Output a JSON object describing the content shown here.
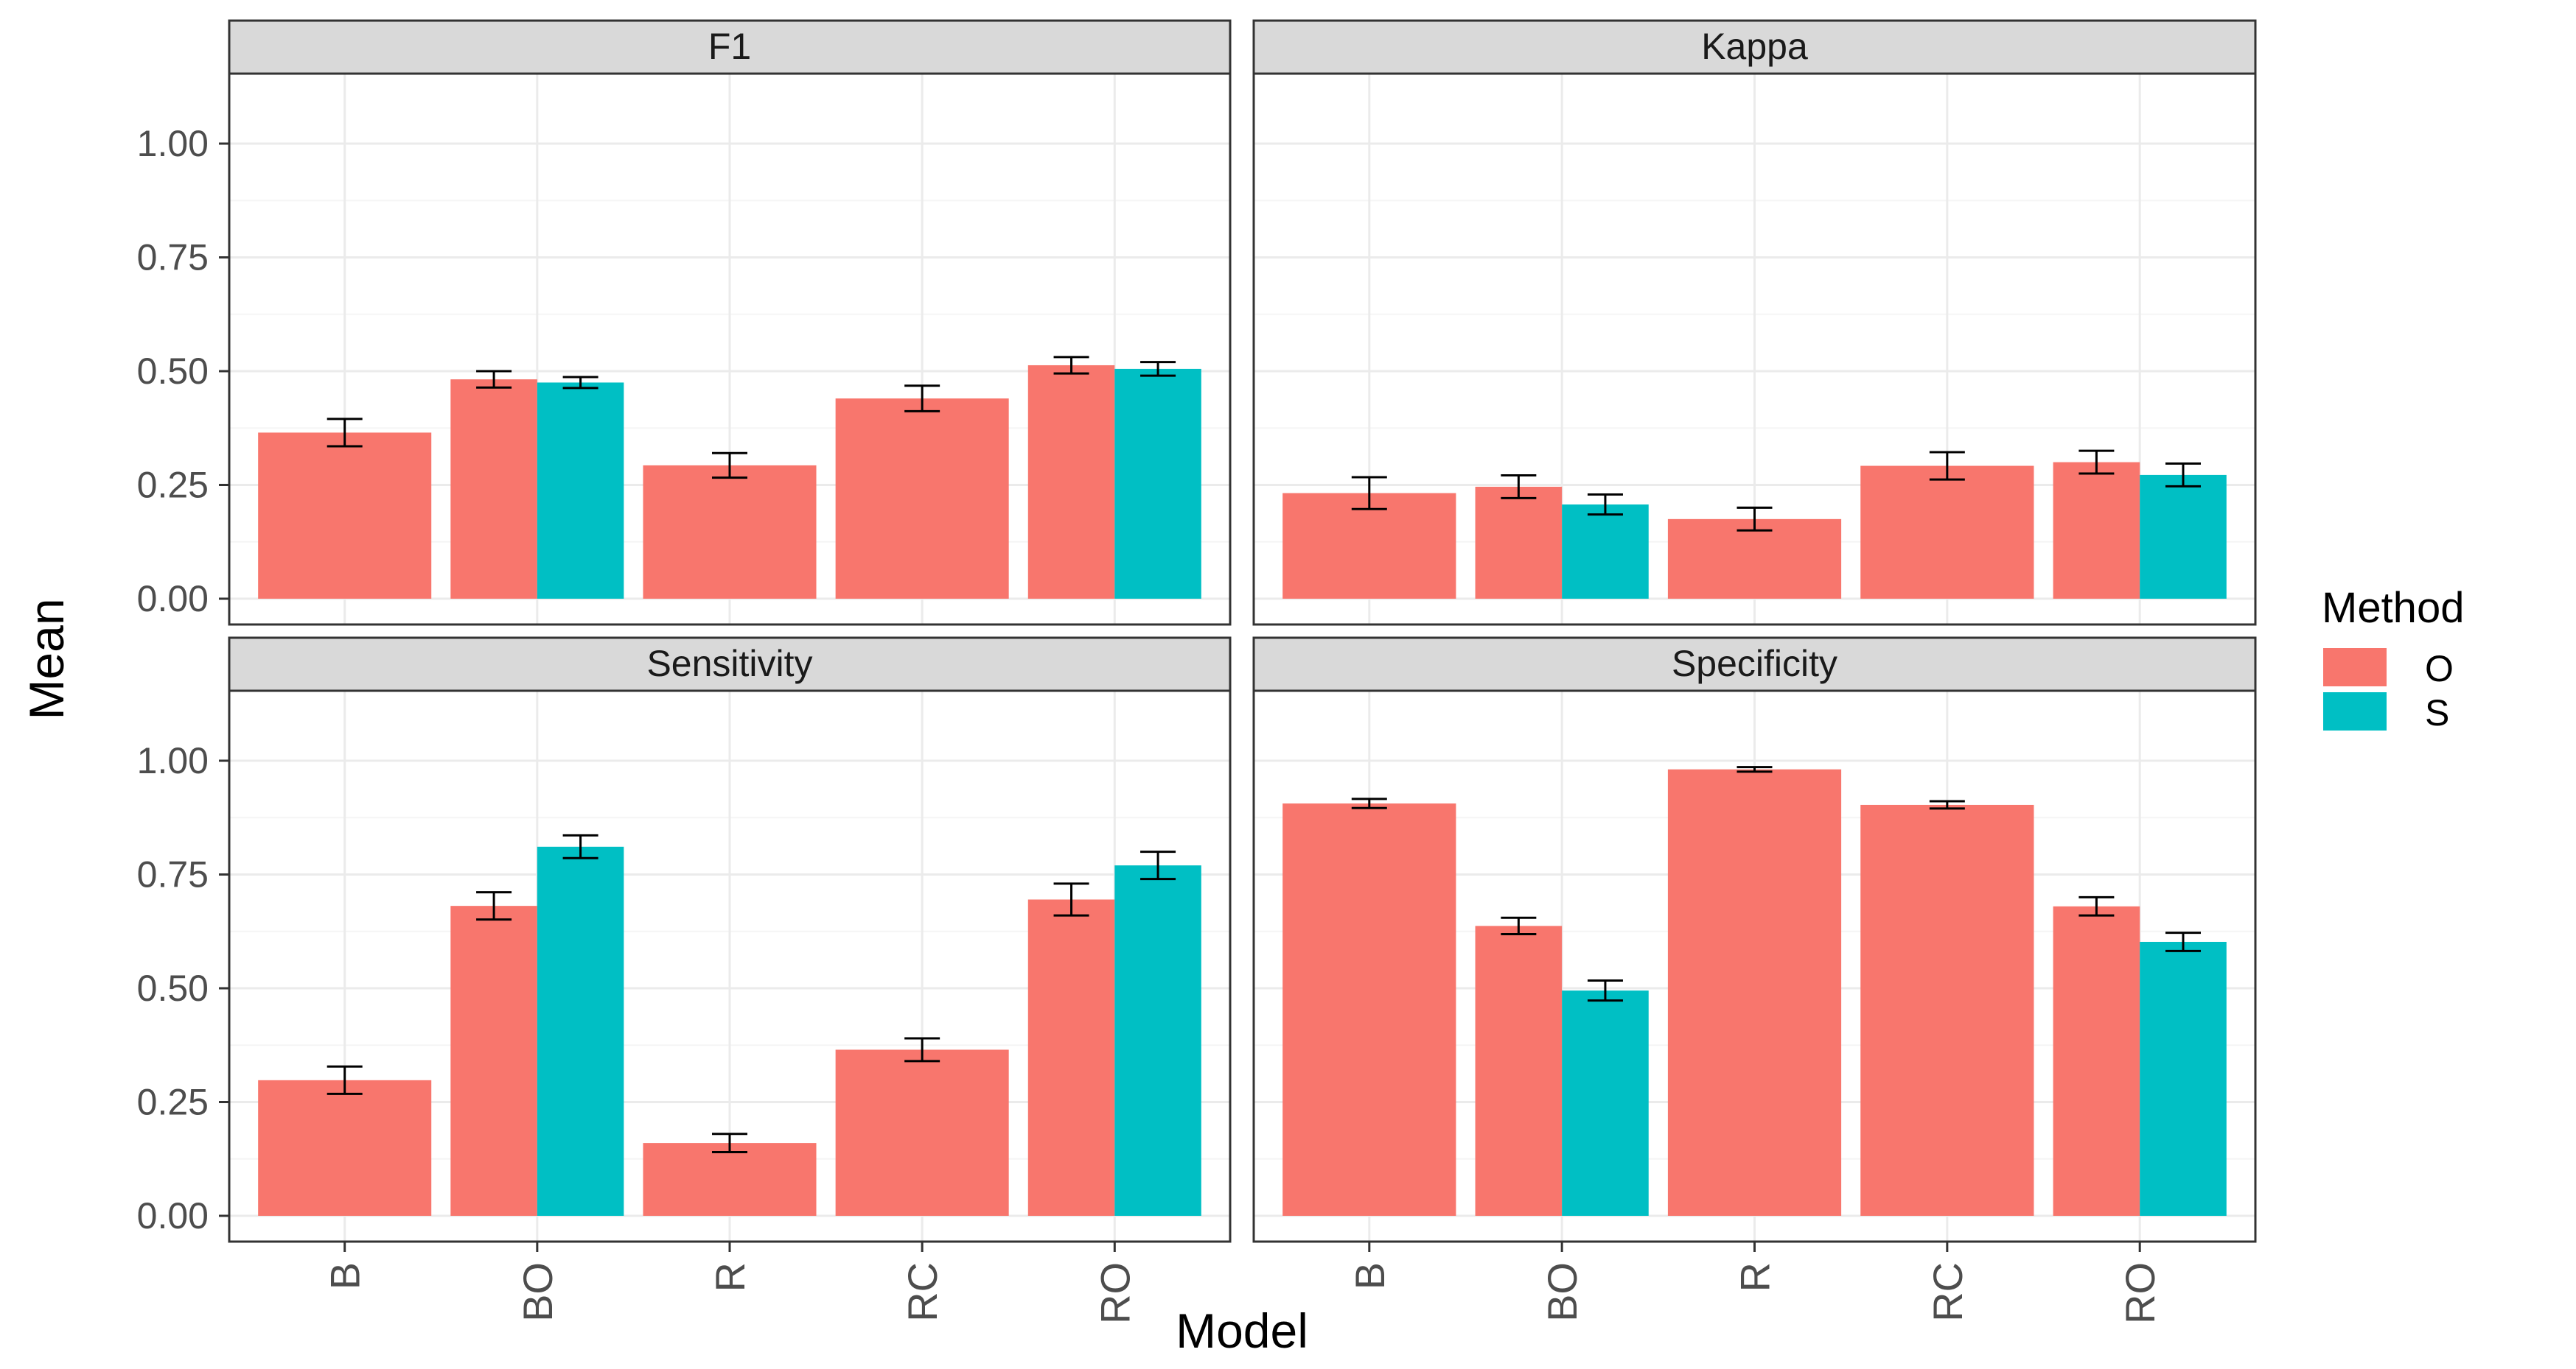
{
  "chart_data": {
    "type": "bar",
    "layout": "facet-grid-2x2",
    "xlabel": "Model",
    "ylabel": "Mean",
    "categories": [
      "B",
      "BO",
      "R",
      "RC",
      "RO"
    ],
    "ylim": [
      0,
      1
    ],
    "yticks": [
      "0.00",
      "0.25",
      "0.50",
      "0.75",
      "1.00"
    ],
    "grid": true,
    "error_bars": true,
    "legend": {
      "title": "Method",
      "position": "right",
      "entries": [
        {
          "label": "O",
          "color": "#F8766D"
        },
        {
          "label": "S",
          "color": "#00BFC4"
        }
      ]
    },
    "panels": [
      {
        "title": "F1",
        "series": [
          {
            "method": "O",
            "values": [
              0.365,
              0.482,
              0.293,
              0.44,
              0.513
            ],
            "errors": [
              0.03,
              0.018,
              0.027,
              0.028,
              0.018
            ]
          },
          {
            "method": "S",
            "values": [
              null,
              0.475,
              null,
              null,
              0.505
            ],
            "errors": [
              null,
              0.012,
              null,
              null,
              0.015
            ]
          }
        ]
      },
      {
        "title": "Kappa",
        "series": [
          {
            "method": "O",
            "values": [
              0.232,
              0.246,
              0.175,
              0.292,
              0.3
            ],
            "errors": [
              0.035,
              0.025,
              0.025,
              0.03,
              0.025
            ]
          },
          {
            "method": "S",
            "values": [
              null,
              0.207,
              null,
              null,
              0.272
            ],
            "errors": [
              null,
              0.022,
              null,
              null,
              0.025
            ]
          }
        ]
      },
      {
        "title": "Sensitivity",
        "series": [
          {
            "method": "O",
            "values": [
              0.298,
              0.681,
              0.16,
              0.365,
              0.695
            ],
            "errors": [
              0.03,
              0.03,
              0.02,
              0.025,
              0.035
            ]
          },
          {
            "method": "S",
            "values": [
              null,
              0.811,
              null,
              null,
              0.77
            ],
            "errors": [
              null,
              0.025,
              null,
              null,
              0.03
            ]
          }
        ]
      },
      {
        "title": "Specificity",
        "series": [
          {
            "method": "O",
            "values": [
              0.906,
              0.637,
              0.981,
              0.903,
              0.68
            ],
            "errors": [
              0.01,
              0.018,
              0.005,
              0.008,
              0.02
            ]
          },
          {
            "method": "S",
            "values": [
              null,
              0.495,
              null,
              null,
              0.602
            ],
            "errors": [
              null,
              0.022,
              null,
              null,
              0.02
            ]
          }
        ]
      }
    ]
  },
  "colors": {
    "O": "#F8766D",
    "S": "#00BFC4",
    "strip": "#D9D9D9",
    "grid_major": "#EBEBEB",
    "grid_minor": "#F5F5F5",
    "border": "#333333",
    "tick_text": "#4D4D4D",
    "error_bar": "#000000"
  }
}
